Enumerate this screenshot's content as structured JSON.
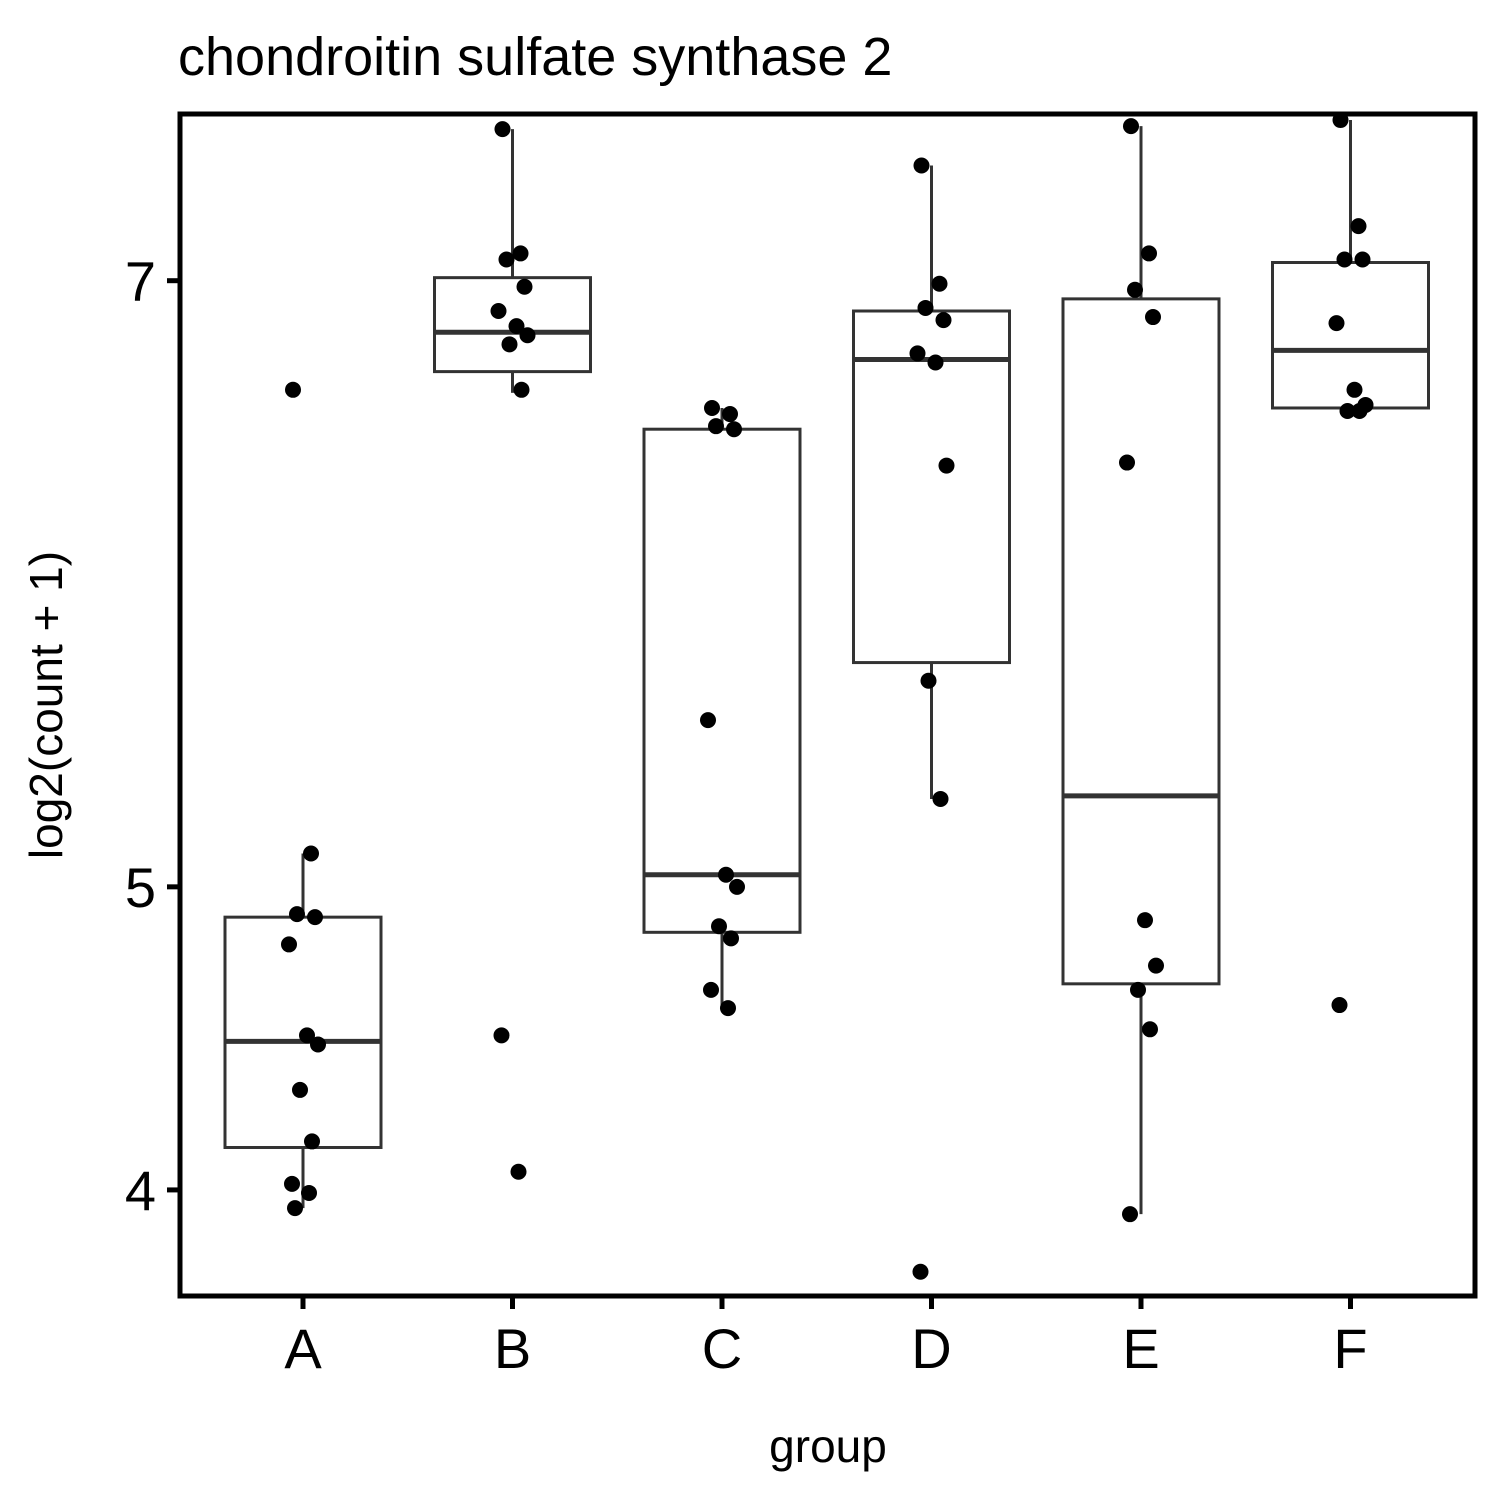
{
  "chart_data": {
    "type": "box",
    "title": "chondroitin sulfate synthase 2",
    "xlabel": "group",
    "ylabel": "log2(count + 1)",
    "scale": "log2-transformed values on a count+1 axis",
    "yticks": [
      4,
      5,
      7
    ],
    "ylim": [
      3.65,
      7.55
    ],
    "categories": [
      "A",
      "B",
      "C",
      "D",
      "E",
      "F"
    ],
    "boxes": [
      {
        "group": "A",
        "whisker_low": 3.94,
        "q1": 4.14,
        "median": 4.49,
        "q3": 4.9,
        "whisker_high": 5.11
      },
      {
        "group": "B",
        "whisker_low": 6.63,
        "q1": 6.7,
        "median": 6.83,
        "q3": 7.01,
        "whisker_high": 7.5
      },
      {
        "group": "C",
        "whisker_low": 4.6,
        "q1": 4.85,
        "median": 5.04,
        "q3": 6.51,
        "whisker_high": 6.58
      },
      {
        "group": "D",
        "whisker_low": 5.29,
        "q1": 5.74,
        "median": 6.74,
        "q3": 6.9,
        "whisker_high": 7.38
      },
      {
        "group": "E",
        "whisker_low": 3.92,
        "q1": 4.68,
        "median": 5.3,
        "q3": 6.94,
        "whisker_high": 7.51
      },
      {
        "group": "F",
        "whisker_low": 6.58,
        "q1": 6.58,
        "median": 6.77,
        "q3": 7.06,
        "whisker_high": 7.53
      }
    ],
    "points": [
      {
        "group": "A",
        "values": [
          6.64,
          5.11,
          4.91,
          4.9,
          4.81,
          4.51,
          4.48,
          4.33,
          4.16,
          4.02,
          3.99,
          3.94
        ]
      },
      {
        "group": "B",
        "values": [
          7.5,
          7.09,
          7.07,
          6.98,
          6.9,
          6.85,
          6.82,
          6.79,
          6.64,
          4.51,
          4.06
        ]
      },
      {
        "group": "C",
        "values": [
          6.58,
          6.56,
          6.52,
          6.51,
          5.55,
          5.04,
          5.0,
          4.87,
          4.83,
          4.66,
          4.6
        ]
      },
      {
        "group": "D",
        "values": [
          7.38,
          6.99,
          6.91,
          6.87,
          6.76,
          6.73,
          6.39,
          5.68,
          5.29,
          3.73
        ]
      },
      {
        "group": "E",
        "values": [
          7.51,
          7.09,
          6.97,
          6.88,
          6.4,
          4.89,
          4.74,
          4.66,
          4.53,
          3.92
        ]
      },
      {
        "group": "F",
        "values": [
          7.53,
          7.18,
          7.07,
          7.07,
          6.86,
          6.64,
          6.59,
          6.57,
          6.57,
          4.61
        ]
      }
    ],
    "grid": false,
    "legend": "none",
    "colors": {
      "box_stroke": "#333333",
      "point": "#000000",
      "frame": "#000000"
    }
  }
}
